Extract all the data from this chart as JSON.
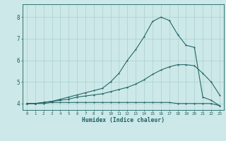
{
  "xlabel": "Humidex (Indice chaleur)",
  "bg_color": "#cde8e8",
  "grid_color": "#aad0d0",
  "line_color": "#1a6060",
  "xlim": [
    -0.5,
    23.5
  ],
  "ylim": [
    3.7,
    8.6
  ],
  "xticks": [
    0,
    1,
    2,
    3,
    4,
    5,
    6,
    7,
    8,
    9,
    10,
    11,
    12,
    13,
    14,
    15,
    16,
    17,
    18,
    19,
    20,
    21,
    22,
    23
  ],
  "yticks": [
    4,
    5,
    6,
    7,
    8
  ],
  "line1_x": [
    0,
    1,
    2,
    3,
    4,
    5,
    6,
    7,
    8,
    9,
    10,
    11,
    12,
    13,
    14,
    15,
    16,
    17,
    18,
    19,
    20,
    21,
    22,
    23
  ],
  "line1_y": [
    4.0,
    4.0,
    4.0,
    4.05,
    4.05,
    4.05,
    4.05,
    4.05,
    4.05,
    4.05,
    4.05,
    4.05,
    4.05,
    4.05,
    4.05,
    4.05,
    4.05,
    4.05,
    4.0,
    4.0,
    4.0,
    4.0,
    4.0,
    3.9
  ],
  "line2_x": [
    0,
    1,
    2,
    3,
    4,
    5,
    6,
    7,
    8,
    9,
    10,
    11,
    12,
    13,
    14,
    15,
    16,
    17,
    18,
    19,
    20,
    21,
    22,
    23
  ],
  "line2_y": [
    4.0,
    4.0,
    4.05,
    4.1,
    4.15,
    4.2,
    4.3,
    4.35,
    4.4,
    4.45,
    4.55,
    4.65,
    4.75,
    4.9,
    5.1,
    5.35,
    5.55,
    5.7,
    5.8,
    5.8,
    5.75,
    5.4,
    5.0,
    4.4
  ],
  "line3_x": [
    0,
    1,
    2,
    3,
    4,
    5,
    6,
    7,
    8,
    9,
    10,
    11,
    12,
    13,
    14,
    15,
    16,
    17,
    18,
    19,
    20,
    21,
    22,
    23
  ],
  "line3_y": [
    4.0,
    4.0,
    4.05,
    4.1,
    4.2,
    4.3,
    4.4,
    4.5,
    4.6,
    4.7,
    5.0,
    5.4,
    6.0,
    6.5,
    7.1,
    7.8,
    8.0,
    7.85,
    7.2,
    6.7,
    6.6,
    4.3,
    4.15,
    3.9
  ]
}
